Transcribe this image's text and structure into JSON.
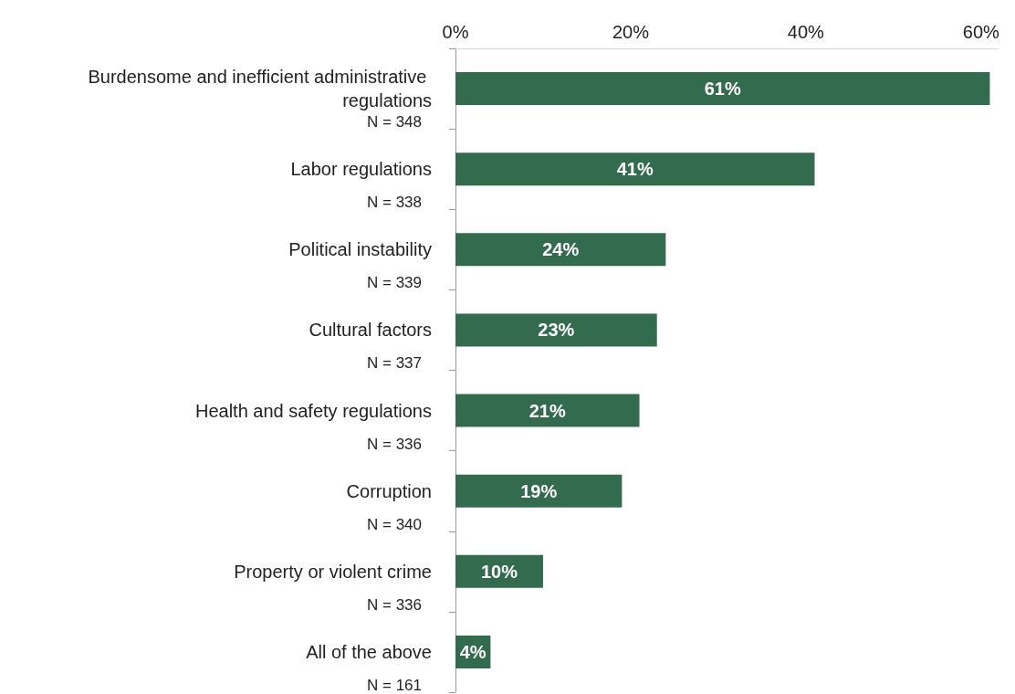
{
  "chart_data": {
    "type": "bar",
    "orientation": "horizontal",
    "categories": [
      "Burdensome and inefficient administrative regulations",
      "Labor regulations",
      "Political instability",
      "Cultural factors",
      "Health and safety regulations",
      "Corruption",
      "Property or violent crime",
      "All of the above"
    ],
    "values": [
      61,
      41,
      24,
      23,
      21,
      19,
      10,
      4
    ],
    "color": "#336b4e",
    "value_labels": [
      "61%",
      "41%",
      "24%",
      "23%",
      "21%",
      "19%",
      "10%",
      "4%"
    ],
    "xlim": [
      0,
      62
    ],
    "xticks": [
      {
        "value": 0,
        "label": "0%"
      },
      {
        "value": 20,
        "label": "20%"
      },
      {
        "value": 40,
        "label": "40%"
      },
      {
        "value": 60,
        "label": "60%"
      }
    ],
    "annotations": [
      "N = 348",
      "N = 338",
      "N = 339",
      "N = 337",
      "N = 336",
      "N = 340",
      "N = 336",
      "N = 161"
    ],
    "grid": false
  }
}
